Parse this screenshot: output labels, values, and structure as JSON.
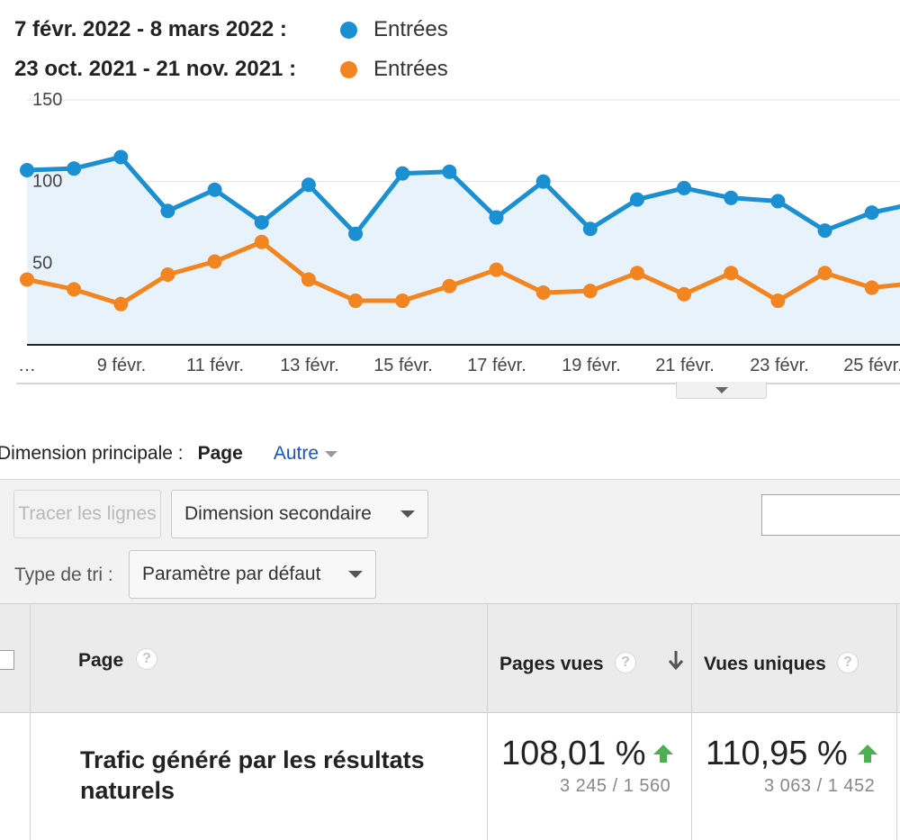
{
  "legend": [
    {
      "range": "7 févr. 2022 - 8 mars 2022 :",
      "label": "Entrées",
      "color": "#1a8fd1"
    },
    {
      "range": "23 oct. 2021 - 21 nov. 2021 :",
      "label": "Entrées",
      "color": "#f38521"
    }
  ],
  "chart_data": {
    "type": "line",
    "y_ticks": [
      "150",
      "100",
      "50"
    ],
    "ylim": [
      0,
      150
    ],
    "x_tick_labels": [
      "…",
      "9 févr.",
      "11 févr.",
      "13 févr.",
      "15 févr.",
      "17 févr.",
      "19 févr.",
      "21 févr.",
      "23 févr.",
      "25 févr."
    ],
    "series": [
      {
        "name": "Entrées",
        "period": "7 févr. 2022 - 8 mars 2022",
        "color": "#1a8fd1",
        "values": [
          107,
          108,
          115,
          82,
          95,
          75,
          98,
          68,
          105,
          106,
          78,
          100,
          71,
          89,
          96,
          90,
          88,
          70,
          81,
          87
        ]
      },
      {
        "name": "Entrées",
        "period": "23 oct. 2021 - 21 nov. 2021",
        "color": "#f38521",
        "values": [
          40,
          34,
          25,
          43,
          51,
          63,
          40,
          27,
          27,
          36,
          46,
          32,
          33,
          44,
          31,
          44,
          27,
          44,
          35,
          38
        ]
      }
    ]
  },
  "dimension": {
    "label": "Dimension principale :",
    "active": "Page",
    "other": "Autre"
  },
  "toolbar": {
    "plot_rows": "Tracer les lignes",
    "secondary_dimension": "Dimension secondaire",
    "sort_label": "Type de tri :",
    "sort_value": "Paramètre par défaut",
    "search_value": ""
  },
  "table": {
    "headers": {
      "page": "Page",
      "pageviews": "Pages vues",
      "unique_views": "Vues uniques",
      "help": "?"
    },
    "row": {
      "title": "Trafic généré par les résultats naturels",
      "pageviews_change": "108,01 %",
      "pageviews_compare": "3 245 / 1 560",
      "unique_change": "110,95 %",
      "unique_compare": "3 063 / 1 452"
    }
  },
  "colors": {
    "increase": "#4caf50",
    "link": "#1a55c0"
  }
}
